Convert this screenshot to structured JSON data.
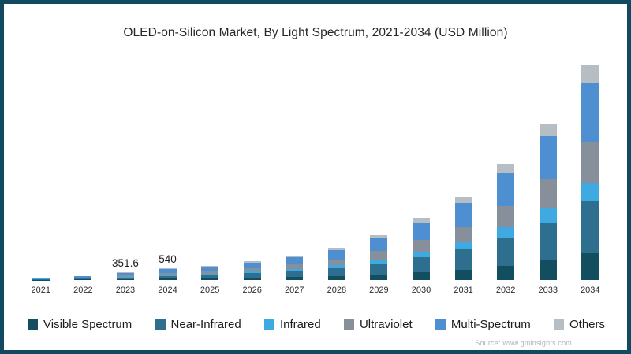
{
  "title": "OLED-on-Silicon Market, By Light Spectrum, 2021-2034 (USD Million)",
  "source": "Source: www.gminsights.com",
  "colors": {
    "frame_border": "#114a60",
    "axis_line": "#dcdcdc",
    "title_text": "#262626",
    "source_text": "#b3b3b3"
  },
  "chart_data": {
    "type": "bar",
    "stacked": true,
    "title": "OLED-on-Silicon Market, By Light Spectrum, 2021-2034 (USD Million)",
    "xlabel": "",
    "ylabel": "USD Million",
    "ylim": [
      0,
      10000
    ],
    "grid": false,
    "legend_position": "bottom",
    "categories": [
      "2021",
      "2022",
      "2023",
      "2024",
      "2025",
      "2026",
      "2027",
      "2028",
      "2029",
      "2030",
      "2031",
      "2032",
      "2033",
      "2034"
    ],
    "bar_labels": [
      "",
      "",
      "351.6",
      "540",
      "",
      "",
      "",
      "",
      "",
      "",
      "",
      "",
      "",
      ""
    ],
    "labeled_totals": {
      "2023": 351.6,
      "2024": 540
    },
    "series": [
      {
        "name": "Visible Spectrum",
        "color": "#124d60",
        "values": [
          16,
          25,
          44,
          68,
          81,
          109,
          144,
          188,
          263,
          363,
          488,
          675,
          913,
          1250
        ]
      },
      {
        "name": "Near-Infrared",
        "color": "#2e6e8e",
        "values": [
          31,
          48,
          84,
          130,
          156,
          209,
          276,
          360,
          504,
          696,
          936,
          1296,
          1752,
          2400
        ]
      },
      {
        "name": "Infrared",
        "color": "#3fa9e2",
        "values": [
          12,
          18,
          32,
          49,
          59,
          78,
          104,
          135,
          189,
          261,
          351,
          486,
          657,
          900
        ]
      },
      {
        "name": "Ultraviolet",
        "color": "#87909a",
        "values": [
          24,
          37,
          65,
          100,
          120,
          161,
          213,
          278,
          389,
          537,
          722,
          999,
          1351,
          1850
        ]
      },
      {
        "name": "Multi-Spectrum",
        "color": "#4d8fd1",
        "values": [
          36,
          56,
          98,
          151,
          182,
          244,
          322,
          420,
          588,
          812,
          1092,
          1512,
          2044,
          2800
        ]
      },
      {
        "name": "Others",
        "color": "#b6bdc3",
        "values": [
          10,
          16,
          28,
          43,
          52,
          70,
          92,
          120,
          168,
          232,
          312,
          432,
          584,
          800
        ]
      }
    ]
  }
}
